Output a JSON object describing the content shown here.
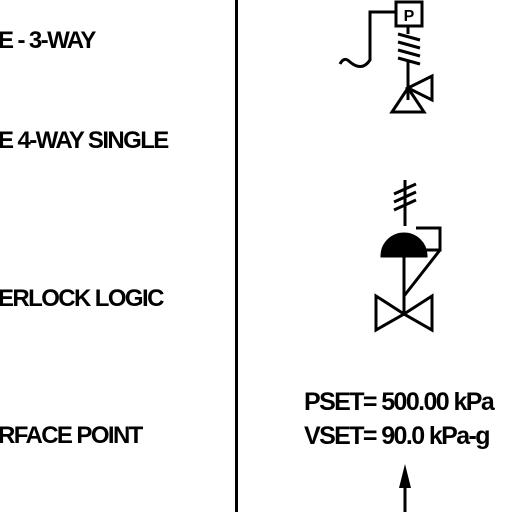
{
  "labels": {
    "row1": "E - 3-WAY",
    "row2": "E 4-WAY SINGLE",
    "row3": "ERLOCK LOGIC",
    "row4": "RFACE POINT"
  },
  "symbols": {
    "positioner_letter": "P",
    "valve1_icon": "solenoid-3-way-valve-icon",
    "valve2_icon": "diaphragm-4-way-valve-icon",
    "arrow_icon": "arrow-up-icon"
  },
  "annotation": {
    "pset": "PSET= 500.00 kPa",
    "vset": "VSET= 90.0 kPa-g"
  },
  "colors": {
    "ink": "#000000",
    "paper": "#ffffff"
  }
}
